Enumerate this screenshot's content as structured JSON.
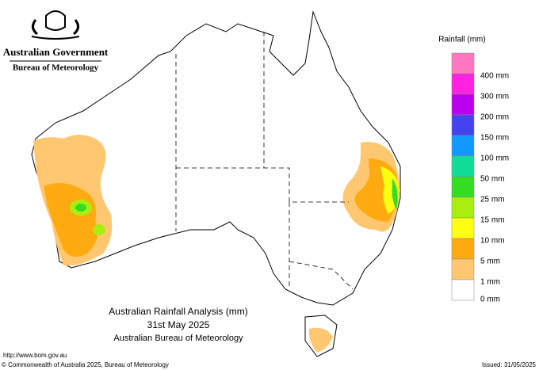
{
  "header": {
    "agency": "Australian Government",
    "bureau": "Bureau of Meteorology"
  },
  "legend": {
    "title": "Rainfall (mm)",
    "colors": [
      "#ff77c0",
      "#ff22e0",
      "#bb00ee",
      "#4444ee",
      "#1199ff",
      "#11dd99",
      "#33dd22",
      "#aaee11",
      "#ffff11",
      "#ffaa11",
      "#ffc870",
      "#ffffff"
    ],
    "labels": [
      "400 mm",
      "300 mm",
      "200 mm",
      "150 mm",
      "100 mm",
      "50 mm",
      "25 mm",
      "15 mm",
      "10 mm",
      "5 mm",
      "1 mm",
      "0 mm"
    ]
  },
  "map_title": {
    "line1": "Australian Rainfall Analysis (mm)",
    "line2": "31st May 2025",
    "line3": "Australian Bureau of Meteorology"
  },
  "footer": {
    "url": "http://www.bom.gov.au",
    "copyright": "© Commonwealth of Australia 2025, Bureau of Meteorology",
    "issued": "Issued: 31/05/2025"
  }
}
